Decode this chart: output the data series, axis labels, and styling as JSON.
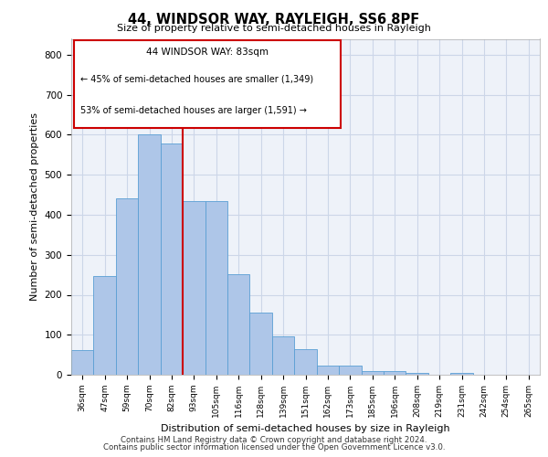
{
  "title1": "44, WINDSOR WAY, RAYLEIGH, SS6 8PF",
  "title2": "Size of property relative to semi-detached houses in Rayleigh",
  "xlabel": "Distribution of semi-detached houses by size in Rayleigh",
  "ylabel": "Number of semi-detached properties",
  "categories": [
    "36sqm",
    "47sqm",
    "59sqm",
    "70sqm",
    "82sqm",
    "93sqm",
    "105sqm",
    "116sqm",
    "128sqm",
    "139sqm",
    "151sqm",
    "162sqm",
    "173sqm",
    "185sqm",
    "196sqm",
    "208sqm",
    "219sqm",
    "231sqm",
    "242sqm",
    "254sqm",
    "265sqm"
  ],
  "values": [
    62,
    248,
    440,
    602,
    578,
    435,
    435,
    252,
    155,
    97,
    63,
    22,
    22,
    10,
    10,
    5,
    0,
    5,
    0,
    0,
    0
  ],
  "bar_color": "#aec6e8",
  "bar_edge_color": "#5a9fd4",
  "property_label": "44 WINDSOR WAY: 83sqm",
  "pct_smaller": "45% of semi-detached houses are smaller (1,349)",
  "pct_larger": "53% of semi-detached houses are larger (1,591)",
  "marker_bar_index": 4,
  "ylim": [
    0,
    840
  ],
  "yticks": [
    0,
    100,
    200,
    300,
    400,
    500,
    600,
    700,
    800
  ],
  "grid_color": "#ccd6e8",
  "annotation_box_edge": "#cc0000",
  "marker_line_color": "#cc0000",
  "footer1": "Contains HM Land Registry data © Crown copyright and database right 2024.",
  "footer2": "Contains public sector information licensed under the Open Government Licence v3.0.",
  "bg_color": "#eef2f9"
}
